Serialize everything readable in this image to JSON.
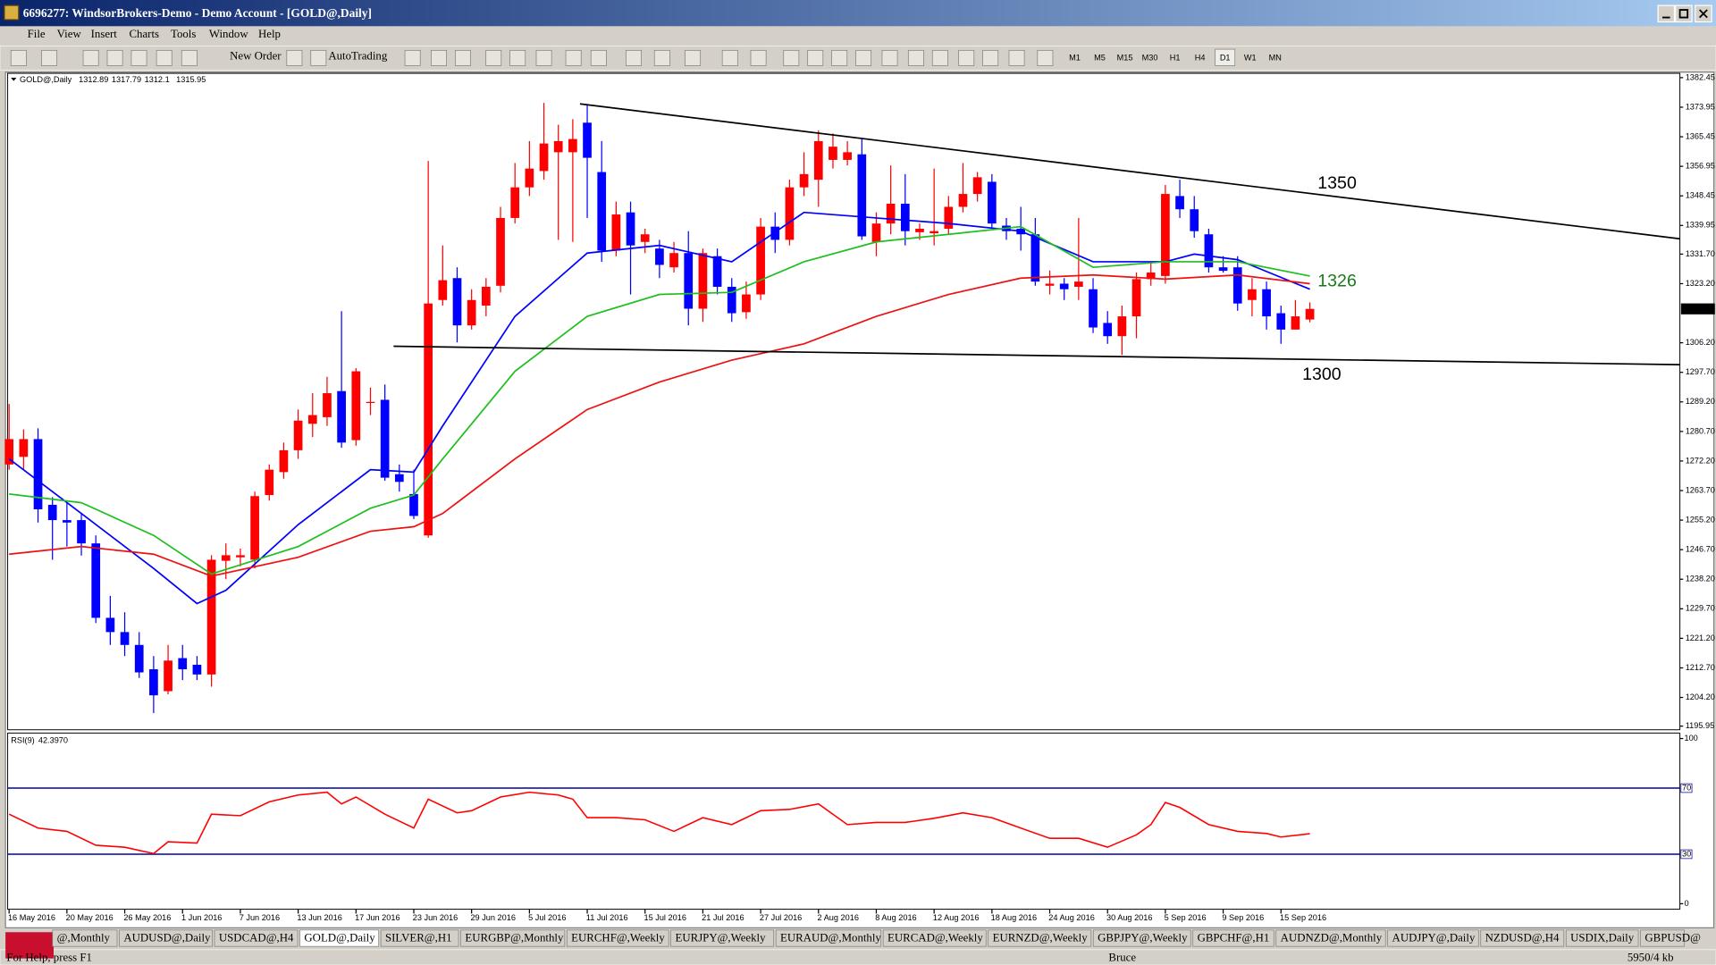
{
  "window": {
    "title": "6696277: WindsorBrokers-Demo - Demo Account - [GOLD@,Daily]",
    "menu": [
      "File",
      "View",
      "Insert",
      "Charts",
      "Tools",
      "Window",
      "Help"
    ],
    "toolbar": {
      "new_order": "New Order",
      "auto_trading": "AutoTrading",
      "timeframes": [
        "M1",
        "M5",
        "M15",
        "M30",
        "H1",
        "H4",
        "D1",
        "W1",
        "MN"
      ]
    },
    "tabs": [
      "@,Monthly",
      "AUDUSD@,Daily",
      "USDCAD@,H4",
      "GOLD@,Daily",
      "SILVER@,H1",
      "EURGBP@,Monthly",
      "EURCHF@,Weekly",
      "EURJPY@,Weekly",
      "EURAUD@,Monthly",
      "EURCAD@,Weekly",
      "EURNZD@,Weekly",
      "GBPJPY@,Weekly",
      "GBPCHF@,H1",
      "AUDNZD@,Monthly",
      "AUDJPY@,Daily",
      "NZDUSD@,H4",
      "USDIX,Daily",
      "GBPUSD@"
    ],
    "status": {
      "help": "For Help, press F1",
      "profile": "Bruce",
      "traffic": "5950/4 kb"
    }
  },
  "chart_data": [
    {
      "type": "candlestick",
      "title": "GOLD@,Daily",
      "up_color": "#ff0000",
      "down_color": "#0000ff",
      "xlim": [
        -0.1,
        115.6
      ],
      "ylim": [
        1194.9,
        1383.7
      ],
      "yticks": [
        1382.45,
        1373.95,
        1365.45,
        1356.95,
        1348.45,
        1339.95,
        {
          "value": 1331.7,
          "label": "1331.70"
        },
        {
          "value": 1323.2,
          "label": "1323.20"
        },
        {
          "value": 1306.2,
          "label": "1306.20"
        },
        {
          "value": 1297.7,
          "label": "1297.70"
        },
        {
          "value": 1289.2,
          "label": "1289.20"
        },
        {
          "value": 1280.7,
          "label": "1280.70"
        },
        {
          "value": 1272.2,
          "label": "1272.20"
        },
        {
          "value": 1263.7,
          "label": "1263.70"
        },
        {
          "value": 1255.2,
          "label": "1255.20"
        },
        {
          "value": 1246.7,
          "label": "1246.70"
        },
        {
          "value": 1238.2,
          "label": "1238.20"
        },
        {
          "value": 1229.7,
          "label": "1229.70"
        },
        {
          "value": 1221.2,
          "label": "1221.20"
        },
        {
          "value": 1212.7,
          "label": "1212.70"
        },
        {
          "value": 1204.2,
          "label": "1204.20"
        },
        1195.95
      ],
      "ohlc": [
        [
          1271.2,
          1288.6,
          1269.7,
          1278.5
        ],
        [
          1273.4,
          1281.3,
          1269.7,
          1278.5
        ],
        [
          1278.5,
          1281.6,
          1254.5,
          1258.3
        ],
        [
          1259.6,
          1261.8,
          1243.8,
          1255.2
        ],
        [
          1255.2,
          1260.2,
          1247.6,
          1254.5
        ],
        [
          1255.2,
          1257.1,
          1245.0,
          1248.5
        ],
        [
          1248.5,
          1250.8,
          1225.6,
          1227.1
        ],
        [
          1227.1,
          1233.4,
          1219.3,
          1223.0
        ],
        [
          1223.0,
          1228.7,
          1216.1,
          1219.3
        ],
        [
          1219.3,
          1223.0,
          1209.8,
          1211.4
        ],
        [
          1212.3,
          1216.1,
          1199.7,
          1204.8
        ],
        [
          1206.0,
          1219.3,
          1205.1,
          1214.8
        ],
        [
          1215.5,
          1219.3,
          1209.2,
          1212.3
        ],
        [
          1213.6,
          1216.1,
          1209.2,
          1210.8
        ],
        [
          1210.8,
          1245.1,
          1207.3,
          1243.8
        ],
        [
          1243.5,
          1248.5,
          1238.2,
          1245.1
        ],
        [
          1244.5,
          1247.0,
          1241.9,
          1245.1
        ],
        [
          1243.8,
          1263.4,
          1241.3,
          1262.1
        ],
        [
          1262.4,
          1271.2,
          1260.8,
          1269.7
        ],
        [
          1269.0,
          1277.5,
          1267.1,
          1275.3
        ],
        [
          1275.3,
          1287.0,
          1272.8,
          1283.8
        ],
        [
          1282.9,
          1291.7,
          1279.1,
          1285.4
        ],
        [
          1284.8,
          1296.4,
          1282.3,
          1291.7
        ],
        [
          1292.3,
          1315.3,
          1276.0,
          1277.5
        ],
        [
          1278.2,
          1298.9,
          1276.6,
          1298.0
        ],
        [
          1288.9,
          1293.3,
          1285.4,
          1289.2
        ],
        [
          1289.8,
          1294.2,
          1266.5,
          1267.4
        ],
        [
          1268.4,
          1271.2,
          1263.4,
          1266.2
        ],
        [
          1262.7,
          1269.7,
          1255.5,
          1256.4
        ],
        [
          1250.8,
          1358.5,
          1250.1,
          1317.5
        ],
        [
          1318.5,
          1334.2,
          1316.9,
          1324.2
        ],
        [
          1324.8,
          1327.9,
          1306.3,
          1311.2
        ],
        [
          1311.2,
          1321.6,
          1310.0,
          1318.5
        ],
        [
          1316.9,
          1324.8,
          1313.8,
          1322.3
        ],
        [
          1322.6,
          1345.3,
          1320.7,
          1342.1
        ],
        [
          1342.1,
          1357.9,
          1340.5,
          1350.9
        ],
        [
          1350.9,
          1364.2,
          1348.4,
          1356.3
        ],
        [
          1355.6,
          1375.2,
          1353.1,
          1363.5
        ],
        [
          1361.0,
          1368.9,
          1335.8,
          1364.2
        ],
        [
          1361.0,
          1370.5,
          1335.2,
          1364.8
        ],
        [
          1369.5,
          1374.5,
          1342.1,
          1359.4
        ],
        [
          1355.3,
          1364.2,
          1329.5,
          1332.7
        ],
        [
          1332.7,
          1346.8,
          1331.1,
          1343.1
        ],
        [
          1343.7,
          1346.8,
          1320.1,
          1334.2
        ],
        [
          1335.2,
          1339.0,
          1332.0,
          1337.4
        ],
        [
          1333.3,
          1335.8,
          1324.8,
          1328.6
        ],
        [
          1327.9,
          1335.2,
          1326.4,
          1332.0
        ],
        [
          1332.0,
          1338.3,
          1311.2,
          1316.0
        ],
        [
          1316.0,
          1333.3,
          1312.2,
          1332.0
        ],
        [
          1331.1,
          1333.3,
          1320.1,
          1322.3
        ],
        [
          1322.3,
          1324.8,
          1312.2,
          1314.7
        ],
        [
          1315.0,
          1323.8,
          1313.1,
          1320.1
        ],
        [
          1320.1,
          1342.1,
          1318.5,
          1339.6
        ],
        [
          1339.6,
          1343.7,
          1332.0,
          1335.8
        ],
        [
          1335.8,
          1353.1,
          1334.2,
          1350.9
        ],
        [
          1350.9,
          1361.0,
          1348.4,
          1354.7
        ],
        [
          1353.1,
          1367.3,
          1345.3,
          1364.2
        ],
        [
          1358.8,
          1366.4,
          1356.3,
          1362.6
        ],
        [
          1358.8,
          1364.2,
          1357.2,
          1361.0
        ],
        [
          1360.4,
          1364.8,
          1335.8,
          1336.8
        ],
        [
          1335.2,
          1343.7,
          1331.1,
          1340.5
        ],
        [
          1340.5,
          1357.2,
          1337.4,
          1346.2
        ],
        [
          1346.2,
          1354.7,
          1334.2,
          1338.3
        ],
        [
          1338.0,
          1340.5,
          1335.8,
          1339.0
        ],
        [
          1337.7,
          1356.3,
          1334.2,
          1338.3
        ],
        [
          1339.0,
          1348.4,
          1337.4,
          1345.3
        ],
        [
          1345.3,
          1357.9,
          1343.7,
          1349.0
        ],
        [
          1349.0,
          1355.3,
          1346.8,
          1353.8
        ],
        [
          1352.5,
          1354.7,
          1339.0,
          1340.5
        ],
        [
          1339.9,
          1342.1,
          1335.8,
          1338.3
        ],
        [
          1339.0,
          1345.3,
          1332.7,
          1337.4
        ],
        [
          1337.4,
          1342.1,
          1322.6,
          1323.8
        ],
        [
          1322.6,
          1327.0,
          1320.1,
          1323.2
        ],
        [
          1323.2,
          1324.8,
          1318.5,
          1321.6
        ],
        [
          1322.3,
          1342.1,
          1318.5,
          1323.8
        ],
        [
          1321.6,
          1324.8,
          1309.0,
          1310.6
        ],
        [
          1311.9,
          1315.3,
          1305.9,
          1308.1
        ],
        [
          1308.1,
          1316.9,
          1302.7,
          1313.8
        ],
        [
          1313.8,
          1326.4,
          1307.5,
          1324.5
        ],
        [
          1324.5,
          1329.5,
          1322.6,
          1326.4
        ],
        [
          1325.4,
          1351.6,
          1323.2,
          1349.0
        ],
        [
          1348.4,
          1353.1,
          1342.1,
          1344.6
        ],
        [
          1344.6,
          1348.4,
          1336.4,
          1338.3
        ],
        [
          1337.4,
          1339.0,
          1326.4,
          1327.9
        ],
        [
          1327.9,
          1331.1,
          1326.4,
          1326.9
        ],
        [
          1327.9,
          1331.1,
          1315.4,
          1317.5
        ],
        [
          1318.5,
          1324.8,
          1313.8,
          1321.6
        ],
        [
          1321.6,
          1323.8,
          1310.0,
          1313.8
        ],
        [
          1314.7,
          1316.9,
          1305.9,
          1310.0
        ],
        [
          1310.0,
          1318.5,
          1310.0,
          1313.8
        ],
        [
          1312.89,
          1317.79,
          1312.1,
          1315.95
        ]
      ],
      "series": [
        {
          "color": "#0000ff",
          "x": [
            0,
            5,
            10,
            13,
            15,
            20,
            25,
            28,
            30,
            35,
            40,
            45,
            50,
            55,
            60,
            65,
            70,
            75,
            80,
            82,
            85,
            90
          ],
          "values": [
            1272.8,
            1257.1,
            1241.3,
            1231.2,
            1235.0,
            1253.9,
            1269.7,
            1269.0,
            1282.3,
            1313.8,
            1332.0,
            1334.2,
            1329.5,
            1343.7,
            1342.1,
            1340.5,
            1338.3,
            1329.5,
            1329.5,
            1331.7,
            1330.1,
            1321.6
          ]
        },
        {
          "color": "#1fbf1f",
          "x": [
            0,
            5,
            10,
            14,
            20,
            25,
            28,
            30,
            35,
            40,
            45,
            50,
            55,
            60,
            65,
            70,
            75,
            80,
            85,
            90
          ],
          "values": [
            1262.7,
            1260.2,
            1250.8,
            1239.7,
            1247.6,
            1258.6,
            1262.4,
            1272.8,
            1298.0,
            1313.8,
            1320.1,
            1320.7,
            1329.5,
            1335.2,
            1337.4,
            1339.6,
            1327.9,
            1329.5,
            1329.5,
            1325.4
          ]
        },
        {
          "color": "#ee1111",
          "x": [
            0,
            5,
            10,
            14,
            20,
            25,
            28,
            30,
            35,
            40,
            45,
            50,
            55,
            60,
            65,
            70,
            75,
            80,
            85,
            90
          ],
          "values": [
            1245.4,
            1247.6,
            1245.4,
            1239.1,
            1244.5,
            1252.0,
            1253.3,
            1257.1,
            1272.8,
            1287.0,
            1294.9,
            1301.2,
            1305.9,
            1313.8,
            1320.1,
            1324.8,
            1325.7,
            1324.5,
            1325.7,
            1323.2
          ]
        }
      ],
      "trendlines": [
        {
          "color": "#000000",
          "x": [
            39.5,
            115.6
          ],
          "values": [
            1374.9,
            1336.1
          ]
        },
        {
          "color": "#000000",
          "x": [
            26.6,
            115.6
          ],
          "values": [
            1305.2,
            1299.9
          ]
        }
      ],
      "annotations": [
        {
          "value": 1350,
          "color": "#000000"
        },
        {
          "value": 1326,
          "color": "#1a7a1a"
        },
        {
          "value": 1300,
          "color": "#000000"
        }
      ]
    },
    {
      "type": "line",
      "title": "RSI(9)",
      "value_label": "42.3970",
      "color": "#ff0000",
      "level_color": "#0000a0",
      "xlim": [
        -0.1,
        115.6
      ],
      "ylim": [
        0,
        100
      ],
      "yticks": [
        100,
        0
      ],
      "levels": [
        70,
        30
      ],
      "x": [
        0,
        2,
        4,
        6,
        8,
        10,
        11,
        13,
        14,
        16,
        18,
        20,
        22,
        23,
        24,
        26,
        28,
        29,
        31,
        32,
        34,
        36,
        38,
        39,
        40,
        42,
        44,
        46,
        48,
        50,
        52,
        54,
        56,
        58,
        60,
        62,
        64,
        66,
        68,
        70,
        72,
        74,
        76,
        78,
        79,
        80,
        81,
        83,
        85,
        87,
        88,
        90
      ],
      "values": [
        54.2,
        45.8,
        43.8,
        35.4,
        34.2,
        30.4,
        37.5,
        36.7,
        54.2,
        53.3,
        61.7,
        65.8,
        67.5,
        60.4,
        64.6,
        54.2,
        45.8,
        63.3,
        55.0,
        56.3,
        64.6,
        67.5,
        65.8,
        63.3,
        52.1,
        52.1,
        50.8,
        43.8,
        52.1,
        47.9,
        56.3,
        57.1,
        60.4,
        47.9,
        49.2,
        49.2,
        51.7,
        55.0,
        52.1,
        45.8,
        39.6,
        39.6,
        34.2,
        41.7,
        47.9,
        61.3,
        58.3,
        47.9,
        43.8,
        42.5,
        40.4,
        42.397
      ],
      "xticks": [
        {
          "value": 0,
          "label": "16 May 2016"
        },
        {
          "value": 4,
          "label": "20 May 2016"
        },
        {
          "value": 8,
          "label": "26 May 2016"
        },
        {
          "value": 12,
          "label": "1 Jun 2016"
        },
        {
          "value": 16,
          "label": "7 Jun 2016"
        },
        {
          "value": 20,
          "label": "13 Jun 2016"
        },
        {
          "value": 24,
          "label": "17 Jun 2016"
        },
        {
          "value": 28,
          "label": "23 Jun 2016"
        },
        {
          "value": 32,
          "label": "29 Jun 2016"
        },
        {
          "value": 36,
          "label": "5 Jul 2016"
        },
        {
          "value": 40,
          "label": "11 Jul 2016"
        },
        {
          "value": 44,
          "label": "15 Jul 2016"
        },
        {
          "value": 48,
          "label": "21 Jul 2016"
        },
        {
          "value": 52,
          "label": "27 Jul 2016"
        },
        {
          "value": 56,
          "label": "2 Aug 2016"
        },
        {
          "value": 60,
          "label": "8 Aug 2016"
        },
        {
          "value": 64,
          "label": "12 Aug 2016"
        },
        {
          "value": 68,
          "label": "18 Aug 2016"
        },
        {
          "value": 72,
          "label": "24 Aug 2016"
        },
        {
          "value": 76,
          "label": "30 Aug 2016"
        },
        {
          "value": 80,
          "label": "5 Sep 2016"
        },
        {
          "value": 84,
          "label": "9 Sep 2016"
        },
        {
          "value": 88,
          "label": "15 Sep 2016"
        }
      ]
    }
  ]
}
